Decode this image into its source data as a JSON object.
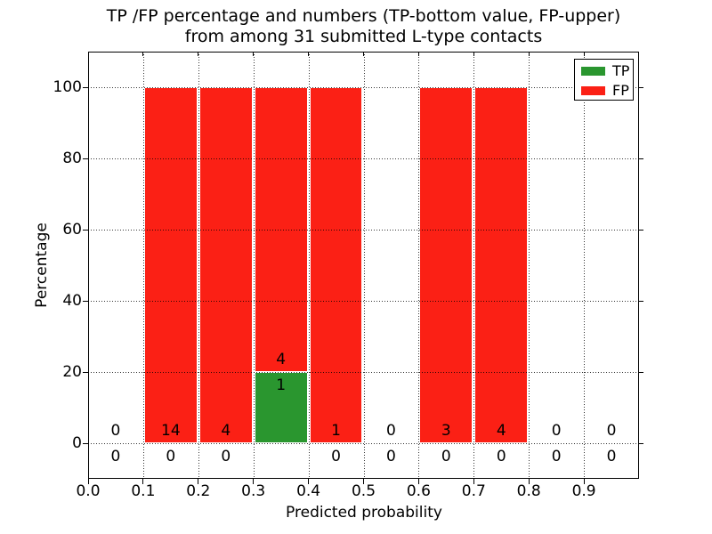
{
  "title": {
    "line1": "TP /FP percentage and numbers (TP-bottom value, FP-upper)",
    "line2": "from among 31 submitted L-type contacts"
  },
  "axes": {
    "xlabel": "Predicted probability",
    "ylabel": "Percentage",
    "xticks": [
      {
        "v": 0.0,
        "label": "0.0"
      },
      {
        "v": 0.1,
        "label": "0.1"
      },
      {
        "v": 0.2,
        "label": "0.2"
      },
      {
        "v": 0.3,
        "label": "0.3"
      },
      {
        "v": 0.4,
        "label": "0.4"
      },
      {
        "v": 0.5,
        "label": "0.5"
      },
      {
        "v": 0.6,
        "label": "0.6"
      },
      {
        "v": 0.7,
        "label": "0.7"
      },
      {
        "v": 0.8,
        "label": "0.8"
      },
      {
        "v": 0.9,
        "label": "0.9"
      }
    ],
    "yticks": [
      {
        "v": 0,
        "label": "0"
      },
      {
        "v": 20,
        "label": "20"
      },
      {
        "v": 40,
        "label": "40"
      },
      {
        "v": 60,
        "label": "60"
      },
      {
        "v": 80,
        "label": "80"
      },
      {
        "v": 100,
        "label": "100"
      }
    ],
    "xgrid": [
      0.1,
      0.2,
      0.3,
      0.4,
      0.5,
      0.6,
      0.7,
      0.8,
      0.9
    ]
  },
  "legend": {
    "items": [
      {
        "label": "TP",
        "color": "#2a962f"
      },
      {
        "label": "FP",
        "color": "#fb2015"
      }
    ]
  },
  "chart_data": {
    "type": "bar",
    "stacked": true,
    "title": "TP /FP percentage and numbers (TP-bottom value, FP-upper) from among 31 submitted L-type contacts",
    "xlabel": "Predicted probability",
    "ylabel": "Percentage",
    "xlim": [
      0,
      1
    ],
    "ylim": [
      -10,
      110
    ],
    "grid": true,
    "grid_style": "dotted",
    "legend_position": "upper right",
    "bin_width": 0.1,
    "bin_starts": [
      0.0,
      0.1,
      0.2,
      0.3,
      0.4,
      0.5,
      0.6,
      0.7,
      0.8,
      0.9
    ],
    "total_contacts": 31,
    "series": [
      {
        "name": "TP",
        "color": "#2a962f",
        "counts": [
          0,
          0,
          0,
          1,
          0,
          0,
          0,
          0,
          0,
          0
        ],
        "pct": [
          0,
          0,
          0,
          20,
          0,
          0,
          0,
          0,
          0,
          0
        ]
      },
      {
        "name": "FP",
        "color": "#fb2015",
        "counts": [
          0,
          14,
          4,
          4,
          1,
          0,
          3,
          4,
          0,
          0
        ],
        "pct": [
          0,
          100,
          100,
          80,
          100,
          0,
          100,
          100,
          0,
          0
        ]
      }
    ],
    "count_label_rows": {
      "fp_row_description": "FP count printed just above top of TP segment (or above axis when no TP bar)",
      "tp_row_description": "TP count printed just below top of TP segment (below axis when no TP bar)"
    }
  }
}
